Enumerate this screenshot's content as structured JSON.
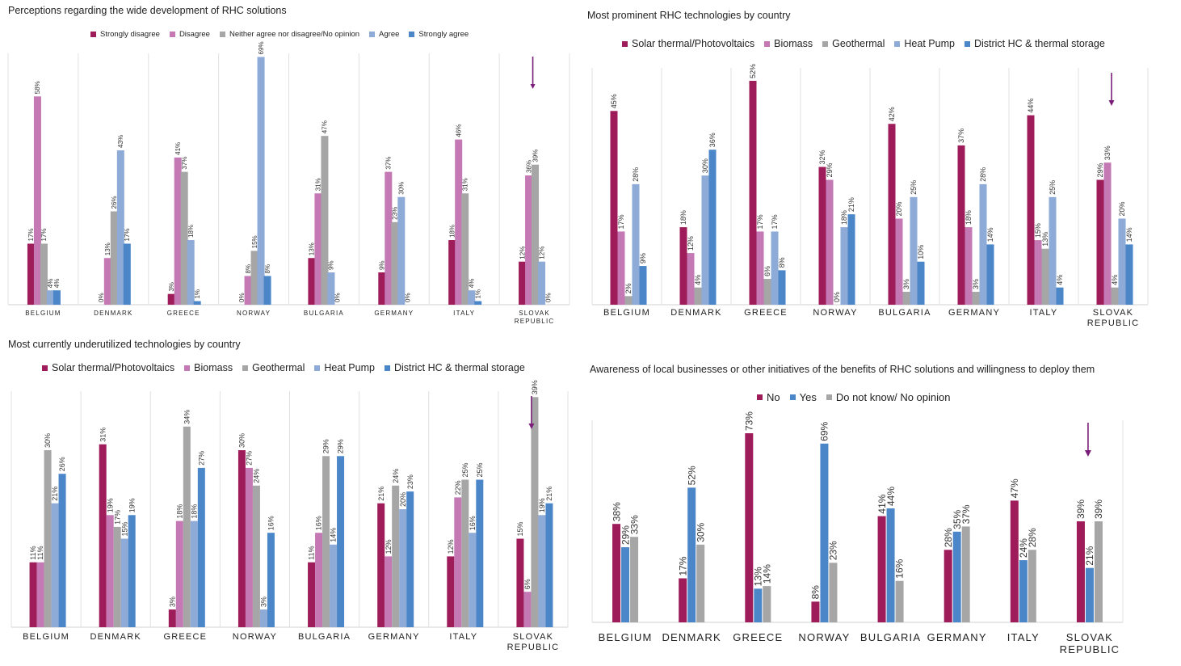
{
  "colors": {
    "solar": "#9e1c5a",
    "biomass": "#c478b4",
    "geothermal": "#a6a6a6",
    "heatpump": "#8eaad6",
    "district": "#4a86c8",
    "agree": "#8eaad6",
    "strongly_agree": "#4a86c8",
    "no": "#9e1c5a",
    "yes": "#4a86c8",
    "dontknow": "#a6a6a6",
    "arrow": "#7b1e7a"
  },
  "chart_data": [
    {
      "id": "perceptions",
      "type": "bar",
      "title": "Perceptions regarding the wide development of RHC solutions",
      "categories": [
        "BELGIUM",
        "DENMARK",
        "GREECE",
        "NORWAY",
        "BULGARIA",
        "GERMANY",
        "ITALY",
        "SLOVAK REPUBLIC"
      ],
      "ylim": [
        0,
        70
      ],
      "highlight_category": "SLOVAK REPUBLIC",
      "series": [
        {
          "name": "Strongly disagree",
          "color_key": "solar",
          "values": [
            17,
            0,
            3,
            0,
            13,
            9,
            18,
            12
          ]
        },
        {
          "name": "Disagree",
          "color_key": "biomass",
          "values": [
            58,
            13,
            41,
            8,
            31,
            37,
            46,
            36
          ]
        },
        {
          "name": "Neither agree nor disagree/No opinion",
          "color_key": "geothermal",
          "values": [
            17,
            26,
            37,
            15,
            47,
            23,
            31,
            39
          ]
        },
        {
          "name": "Agree",
          "color_key": "agree",
          "values": [
            4,
            43,
            18,
            69,
            9,
            30,
            4,
            12
          ]
        },
        {
          "name": "Strongly agree",
          "color_key": "strongly_agree",
          "values": [
            4,
            17,
            1,
            8,
            0,
            0,
            1,
            0
          ]
        }
      ]
    },
    {
      "id": "prominent",
      "type": "bar",
      "title": "Most prominent RHC technologies by country",
      "categories": [
        "BELGIUM",
        "DENMARK",
        "GREECE",
        "NORWAY",
        "BULGARIA",
        "GERMANY",
        "ITALY",
        "SLOVAK REPUBLIC"
      ],
      "ylim": [
        0,
        55
      ],
      "highlight_category": "SLOVAK REPUBLIC",
      "series": [
        {
          "name": "Solar thermal/Photovoltaics",
          "color_key": "solar",
          "values": [
            45,
            18,
            52,
            32,
            42,
            37,
            44,
            29
          ]
        },
        {
          "name": "Biomass",
          "color_key": "biomass",
          "values": [
            17,
            12,
            17,
            29,
            20,
            18,
            15,
            33
          ]
        },
        {
          "name": "Geothermal",
          "color_key": "geothermal",
          "values": [
            2,
            4,
            6,
            0,
            3,
            3,
            13,
            4
          ]
        },
        {
          "name": "Heat Pump",
          "color_key": "heatpump",
          "values": [
            28,
            30,
            17,
            18,
            25,
            28,
            25,
            20
          ]
        },
        {
          "name": "District HC & thermal storage",
          "color_key": "district",
          "values": [
            9,
            36,
            8,
            21,
            10,
            14,
            4,
            14
          ]
        }
      ]
    },
    {
      "id": "underutilized",
      "type": "bar",
      "title": "Most currently underutilized technologies by country",
      "categories": [
        "BELGIUM",
        "DENMARK",
        "GREECE",
        "NORWAY",
        "BULGARIA",
        "GERMANY",
        "ITALY",
        "SLOVAK REPUBLIC"
      ],
      "ylim": [
        0,
        40
      ],
      "highlight_category": "SLOVAK REPUBLIC",
      "series": [
        {
          "name": "Solar thermal/Photovoltaics",
          "color_key": "solar",
          "values": [
            11,
            31,
            3,
            30,
            11,
            21,
            12,
            15
          ]
        },
        {
          "name": "Biomass",
          "color_key": "biomass",
          "values": [
            11,
            19,
            18,
            27,
            16,
            12,
            22,
            6
          ]
        },
        {
          "name": "Geothermal",
          "color_key": "geothermal",
          "values": [
            30,
            17,
            34,
            24,
            29,
            24,
            25,
            39
          ]
        },
        {
          "name": "Heat Pump",
          "color_key": "heatpump",
          "values": [
            21,
            15,
            18,
            3,
            14,
            20,
            16,
            19
          ]
        },
        {
          "name": "District HC & thermal storage",
          "color_key": "district",
          "values": [
            26,
            19,
            27,
            16,
            29,
            23,
            25,
            21
          ]
        }
      ]
    },
    {
      "id": "awareness",
      "type": "bar",
      "title": "Awareness of local businesses or other initiatives of the benefits of RHC solutions and willingness to deploy them",
      "categories": [
        "BELGIUM",
        "DENMARK",
        "GREECE",
        "NORWAY",
        "BULGARIA",
        "GERMANY",
        "ITALY",
        "SLOVAK REPUBLIC"
      ],
      "ylim": [
        0,
        78
      ],
      "highlight_category": "SLOVAK REPUBLIC",
      "series": [
        {
          "name": "No",
          "color_key": "no",
          "values": [
            38,
            17,
            73,
            8,
            41,
            28,
            47,
            39
          ]
        },
        {
          "name": "Yes",
          "color_key": "yes",
          "values": [
            29,
            52,
            13,
            69,
            44,
            35,
            24,
            21
          ]
        },
        {
          "name": "Do not know/ No opinion",
          "color_key": "dontknow",
          "values": [
            33,
            30,
            14,
            23,
            16,
            37,
            28,
            39
          ]
        }
      ]
    }
  ]
}
